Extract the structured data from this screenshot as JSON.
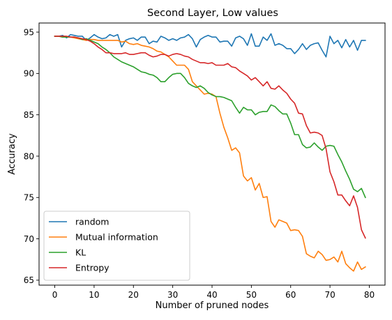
{
  "chart_data": {
    "type": "line",
    "title": "Second Layer, Low values",
    "xlabel": "Number of pruned nodes",
    "ylabel": "Accuracy",
    "xlim": [
      -4,
      84
    ],
    "ylim": [
      64.4,
      96.1
    ],
    "xticks": [
      0,
      10,
      20,
      30,
      40,
      50,
      60,
      70,
      80
    ],
    "yticks": [
      65,
      70,
      75,
      80,
      85,
      90,
      95
    ],
    "grid": false,
    "legend_position": "lower-left",
    "x": [
      0,
      1,
      2,
      3,
      4,
      5,
      6,
      7,
      8,
      9,
      10,
      11,
      12,
      13,
      14,
      15,
      16,
      17,
      18,
      19,
      20,
      21,
      22,
      23,
      24,
      25,
      26,
      27,
      28,
      29,
      30,
      31,
      32,
      33,
      34,
      35,
      36,
      37,
      38,
      39,
      40,
      41,
      42,
      43,
      44,
      45,
      46,
      47,
      48,
      49,
      50,
      51,
      52,
      53,
      54,
      55,
      56,
      57,
      58,
      59,
      60,
      61,
      62,
      63,
      64,
      65,
      66,
      67,
      68,
      69,
      70,
      71,
      72,
      73,
      74,
      75,
      76,
      77,
      78,
      79
    ],
    "series": [
      {
        "name": "random",
        "color": "#1f77b4",
        "values": [
          94.5,
          94.5,
          94.6,
          94.3,
          94.7,
          94.6,
          94.5,
          94.5,
          94.0,
          94.3,
          94.7,
          94.4,
          94.2,
          94.3,
          94.7,
          94.5,
          94.7,
          93.2,
          94.0,
          94.2,
          94.3,
          94.0,
          94.4,
          94.4,
          93.6,
          93.9,
          93.8,
          94.5,
          94.3,
          94.0,
          94.2,
          94.0,
          94.3,
          94.4,
          94.7,
          94.2,
          93.2,
          94.1,
          94.4,
          94.6,
          94.4,
          94.4,
          93.8,
          93.9,
          93.9,
          93.3,
          94.3,
          94.5,
          94.2,
          93.4,
          94.8,
          93.3,
          93.3,
          94.4,
          94.0,
          94.8,
          93.4,
          93.6,
          93.4,
          93.0,
          93.0,
          92.4,
          92.9,
          93.6,
          92.9,
          93.4,
          93.6,
          93.7,
          92.8,
          92.0,
          94.5,
          93.6,
          94.0,
          93.1,
          94.1,
          93.2,
          94.0,
          92.8,
          94.0,
          94.0
        ]
      },
      {
        "name": "Mutual information",
        "color": "#ff7f0e",
        "values": [
          94.5,
          94.5,
          94.4,
          94.4,
          94.4,
          94.3,
          94.2,
          94.1,
          94.0,
          94.1,
          94.1,
          94.0,
          94.0,
          94.0,
          94.0,
          94.0,
          94.0,
          93.8,
          93.9,
          93.6,
          93.5,
          93.6,
          93.4,
          93.3,
          93.2,
          93.0,
          92.7,
          92.6,
          92.3,
          92.0,
          91.5,
          91.0,
          91.0,
          91.0,
          90.5,
          89.0,
          88.5,
          88.0,
          87.5,
          87.6,
          87.5,
          87.2,
          85.2,
          83.5,
          82.2,
          80.7,
          81.0,
          80.4,
          77.6,
          77.0,
          77.4,
          75.9,
          76.7,
          75.0,
          75.1,
          72.1,
          71.4,
          72.3,
          72.1,
          71.9,
          71.0,
          71.1,
          71.0,
          70.3,
          68.2,
          67.9,
          67.7,
          68.5,
          68.1,
          67.4,
          67.5,
          67.8,
          67.2,
          68.5,
          67.0,
          66.5,
          66.1,
          67.2,
          66.3,
          66.6
        ]
      },
      {
        "name": "KL",
        "color": "#2ca02c",
        "values": [
          94.5,
          94.5,
          94.4,
          94.4,
          94.4,
          94.4,
          94.3,
          94.1,
          94.2,
          94.0,
          93.8,
          93.6,
          93.2,
          92.9,
          92.5,
          92.0,
          91.7,
          91.4,
          91.2,
          91.0,
          90.8,
          90.5,
          90.2,
          90.1,
          89.9,
          89.8,
          89.5,
          89.0,
          89.0,
          89.5,
          89.9,
          90.0,
          90.0,
          89.5,
          88.8,
          88.5,
          88.3,
          88.5,
          88.2,
          87.7,
          87.4,
          87.2,
          87.2,
          87.1,
          86.9,
          86.7,
          85.9,
          85.2,
          85.9,
          85.6,
          85.6,
          85.0,
          85.3,
          85.4,
          85.4,
          86.2,
          86.0,
          85.5,
          85.1,
          85.1,
          84.0,
          82.6,
          82.6,
          81.4,
          81.0,
          81.1,
          81.6,
          81.1,
          80.7,
          81.2,
          81.3,
          81.2,
          80.2,
          79.3,
          78.2,
          77.2,
          76.0,
          75.7,
          76.1,
          75.0
        ]
      },
      {
        "name": "Entropy",
        "color": "#d62728",
        "values": [
          94.5,
          94.5,
          94.5,
          94.5,
          94.4,
          94.4,
          94.3,
          94.2,
          94.1,
          93.9,
          93.6,
          93.2,
          92.9,
          92.5,
          92.5,
          92.4,
          92.4,
          92.4,
          92.5,
          92.3,
          92.3,
          92.4,
          92.5,
          92.5,
          92.2,
          92.0,
          92.1,
          92.3,
          92.3,
          92.1,
          92.3,
          92.4,
          92.3,
          92.1,
          92.0,
          91.7,
          91.5,
          91.3,
          91.3,
          91.2,
          91.3,
          91.0,
          91.0,
          91.0,
          91.2,
          90.8,
          90.7,
          90.3,
          90.0,
          89.7,
          89.2,
          89.5,
          89.0,
          88.5,
          89.0,
          88.2,
          88.1,
          88.5,
          88.0,
          87.6,
          86.9,
          86.4,
          85.2,
          85.1,
          83.7,
          82.8,
          82.9,
          82.8,
          82.5,
          80.9,
          78.1,
          76.9,
          75.3,
          75.3,
          74.6,
          74.0,
          75.2,
          73.8,
          71.1,
          70.1
        ]
      }
    ]
  }
}
